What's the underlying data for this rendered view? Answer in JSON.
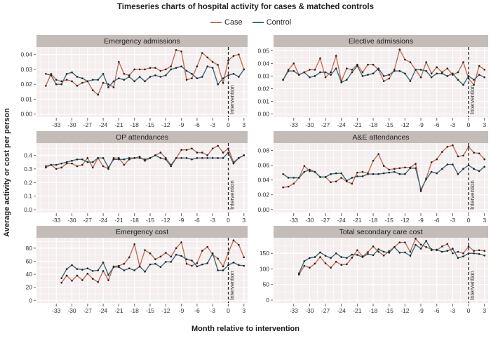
{
  "chart_data": {
    "type": "line",
    "title": "Timeseries charts of hospital activity for cases & matched controls",
    "xlabel": "Month relative to intervention",
    "ylabel": "Average activity or cost per person",
    "legend": {
      "placement": "top",
      "entries": [
        "Case",
        "Control"
      ]
    },
    "colors": {
      "Case": "#c0705a",
      "Control": "#3f6c78"
    },
    "annotation": {
      "x": 0,
      "label": "Intervention"
    },
    "x_ticks": [
      -33,
      -30,
      -27,
      -24,
      -21,
      -18,
      -15,
      -12,
      -9,
      -6,
      -3,
      0,
      3
    ],
    "grid": true,
    "panels": [
      {
        "title": "Emergency admissions",
        "x_start": -35,
        "ylim": [
          -0.002,
          0.045
        ],
        "y_ticks": [
          "0.00",
          "0.01",
          "0.02",
          "0.03",
          "0.04"
        ],
        "series": [
          {
            "name": "Case",
            "values": [
              0.019,
              0.027,
              0.023,
              0.022,
              0.023,
              0.022,
              0.019,
              0.021,
              0.022,
              0.016,
              0.013,
              0.021,
              0.02,
              0.018,
              0.035,
              0.027,
              0.026,
              0.03,
              0.03,
              0.03,
              0.031,
              0.031,
              0.029,
              0.03,
              0.032,
              0.043,
              0.042,
              0.023,
              0.024,
              0.032,
              0.041,
              0.038,
              0.035,
              0.033,
              0.021,
              0.036,
              0.039,
              0.04,
              0.03
            ]
          },
          {
            "name": "Control",
            "values": [
              0.027,
              0.026,
              0.02,
              0.02,
              0.027,
              0.028,
              0.025,
              0.024,
              0.022,
              0.023,
              0.023,
              0.027,
              0.018,
              0.022,
              0.024,
              0.023,
              0.025,
              0.022,
              0.025,
              0.022,
              0.025,
              0.026,
              0.025,
              0.026,
              0.03,
              0.031,
              0.032,
              0.029,
              0.027,
              0.024,
              0.025,
              0.032,
              0.031,
              0.02,
              0.024,
              0.026,
              0.027,
              0.025,
              0.03
            ]
          }
        ]
      },
      {
        "title": "Elective admissions",
        "x_start": -35,
        "ylim": [
          -0.0025,
          0.053
        ],
        "y_ticks": [
          "0.00",
          "0.01",
          "0.02",
          "0.03",
          "0.04",
          "0.05"
        ],
        "series": [
          {
            "name": "Case",
            "values": [
              0.027,
              0.035,
              0.04,
              0.031,
              0.033,
              0.035,
              0.035,
              0.044,
              0.029,
              0.033,
              0.046,
              0.026,
              0.036,
              0.035,
              0.039,
              0.033,
              0.039,
              0.039,
              0.035,
              0.026,
              0.028,
              0.035,
              0.051,
              0.043,
              0.041,
              0.035,
              0.029,
              0.041,
              0.032,
              0.037,
              0.033,
              0.036,
              0.031,
              0.033,
              0.041,
              0.028,
              0.023,
              0.038,
              0.035
            ]
          },
          {
            "name": "Control",
            "values": [
              0.027,
              0.034,
              0.034,
              0.031,
              0.033,
              0.029,
              0.03,
              0.033,
              0.033,
              0.031,
              0.036,
              0.025,
              0.027,
              0.033,
              0.038,
              0.03,
              0.031,
              0.032,
              0.036,
              0.03,
              0.031,
              0.034,
              0.034,
              0.032,
              0.026,
              0.035,
              0.035,
              0.034,
              0.029,
              0.032,
              0.032,
              0.03,
              0.032,
              0.027,
              0.023,
              0.03,
              0.027,
              0.031,
              0.029
            ]
          }
        ]
      },
      {
        "title": "OP attendances",
        "x_start": -35,
        "ylim": [
          -0.02,
          0.49
        ],
        "y_ticks": [
          "0.0",
          "0.1",
          "0.2",
          "0.3",
          "0.4"
        ],
        "series": [
          {
            "name": "Case",
            "values": [
              0.31,
              0.33,
              0.3,
              0.31,
              0.34,
              0.34,
              0.32,
              0.33,
              0.38,
              0.31,
              0.38,
              0.32,
              0.3,
              0.38,
              0.38,
              0.33,
              0.37,
              0.38,
              0.39,
              0.36,
              0.38,
              0.4,
              0.42,
              0.38,
              0.33,
              0.38,
              0.44,
              0.44,
              0.45,
              0.42,
              0.42,
              0.4,
              0.45,
              0.47,
              0.42,
              0.45,
              0.35,
              0.38,
              0.4
            ]
          },
          {
            "name": "Control",
            "values": [
              0.32,
              0.33,
              0.33,
              0.34,
              0.35,
              0.36,
              0.37,
              0.37,
              0.35,
              0.35,
              0.38,
              0.38,
              0.31,
              0.37,
              0.37,
              0.37,
              0.38,
              0.38,
              0.38,
              0.37,
              0.38,
              0.4,
              0.38,
              0.37,
              0.32,
              0.38,
              0.38,
              0.38,
              0.37,
              0.38,
              0.38,
              0.38,
              0.38,
              0.38,
              0.38,
              0.42,
              0.34,
              0.38,
              0.4
            ]
          }
        ]
      },
      {
        "title": "A&E attendances",
        "x_start": -35,
        "ylim": [
          -0.004,
          0.09
        ],
        "y_ticks": [
          "0.00",
          "0.02",
          "0.04",
          "0.06",
          "0.08"
        ],
        "series": [
          {
            "name": "Case",
            "values": [
              0.03,
              0.031,
              0.035,
              0.043,
              0.059,
              0.052,
              0.051,
              0.044,
              0.044,
              0.037,
              0.038,
              0.043,
              0.038,
              0.035,
              0.05,
              0.051,
              0.049,
              0.066,
              0.075,
              0.059,
              0.054,
              0.055,
              0.056,
              0.057,
              0.057,
              0.062,
              0.025,
              0.042,
              0.064,
              0.068,
              0.078,
              0.085,
              0.087,
              0.072,
              0.073,
              0.085,
              0.077,
              0.076,
              0.068
            ]
          },
          {
            "name": "Control",
            "values": [
              0.048,
              0.043,
              0.043,
              0.043,
              0.051,
              0.054,
              0.051,
              0.044,
              0.044,
              0.048,
              0.049,
              0.049,
              0.039,
              0.043,
              0.045,
              0.045,
              0.048,
              0.048,
              0.048,
              0.049,
              0.05,
              0.051,
              0.048,
              0.048,
              0.056,
              0.056,
              0.027,
              0.041,
              0.051,
              0.049,
              0.055,
              0.061,
              0.061,
              0.048,
              0.055,
              0.06,
              0.055,
              0.052,
              0.058
            ]
          }
        ]
      },
      {
        "title": "Emergency cost",
        "x_start": -32,
        "ylim": [
          -4,
          96
        ],
        "y_ticks": [
          "0",
          "20",
          "40",
          "60",
          "80"
        ],
        "series": [
          {
            "name": "Case",
            "values": [
              27,
              38,
              30,
              38,
              31,
              41,
              33,
              28,
              45,
              31,
              52,
              53,
              56,
              66,
              86,
              52,
              77,
              72,
              63,
              67,
              73,
              67,
              80,
              89,
              56,
              53,
              57,
              76,
              82,
              70,
              64,
              52,
              73,
              92,
              85,
              66
            ]
          },
          {
            "name": "Control",
            "values": [
              34,
              48,
              54,
              48,
              47,
              49,
              45,
              46,
              58,
              39,
              51,
              51,
              46,
              49,
              46,
              52,
              44,
              55,
              56,
              51,
              59,
              59,
              70,
              68,
              63,
              61,
              52,
              55,
              57,
              72,
              46,
              46,
              54,
              58,
              54,
              53
            ]
          }
        ]
      },
      {
        "title": "Total secondary care cost",
        "x_start": -32,
        "ylim": [
          -9,
          200
        ],
        "y_ticks": [
          "0",
          "50",
          "100",
          "150"
        ],
        "series": [
          {
            "name": "Case",
            "values": [
              82,
              110,
              104,
              117,
              138,
              118,
              104,
              123,
              113,
              115,
              136,
              160,
              140,
              154,
              172,
              155,
              143,
              157,
              170,
              185,
              185,
              155,
              197,
              178,
              170,
              163,
              160,
              172,
              180,
              150,
              155,
              150,
              172,
              158,
              160,
              158
            ]
          },
          {
            "name": "Control",
            "values": [
              86,
              125,
              135,
              138,
              153,
              142,
              135,
              150,
              138,
              135,
              146,
              145,
              138,
              148,
              144,
              163,
              155,
              152,
              170,
              152,
              153,
              142,
              177,
              165,
              190,
              160,
              162,
              155,
              158,
              165,
              135,
              140,
              150,
              150,
              148,
              143
            ]
          }
        ]
      }
    ]
  }
}
